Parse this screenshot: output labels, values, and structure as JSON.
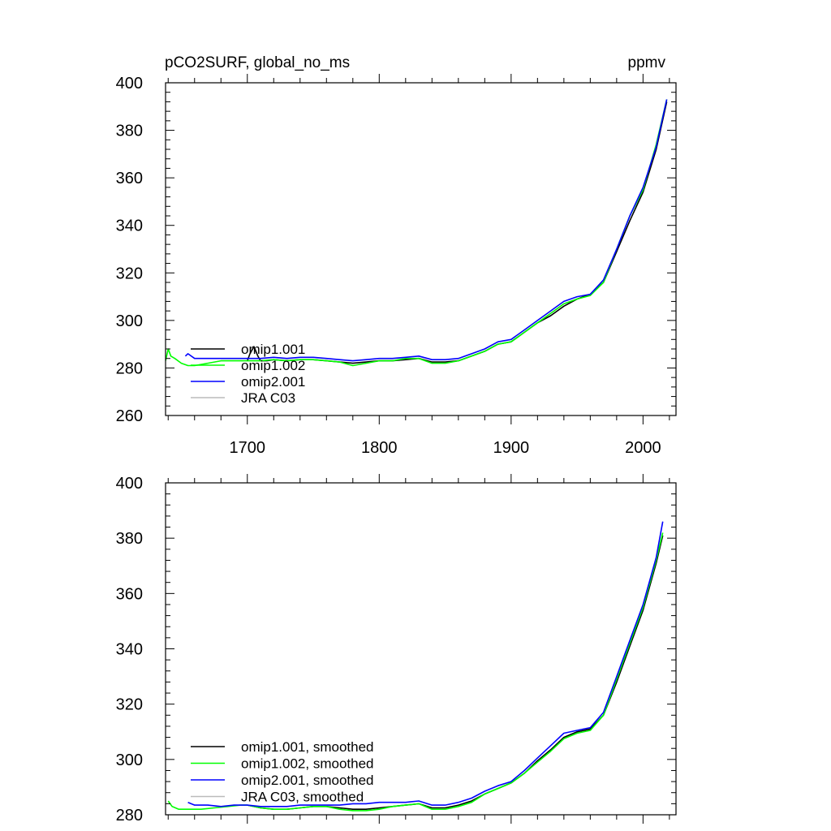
{
  "figure": {
    "background": "#ffffff"
  },
  "chart_data": [
    {
      "type": "line",
      "title": "pCO2SURF, global_no_ms",
      "units": "ppmv",
      "xlim": [
        1638,
        2025
      ],
      "ylim": [
        260,
        400
      ],
      "xticks": [
        1700,
        1800,
        1900,
        2000
      ],
      "xtick_labels": [
        "1700",
        "1800",
        "1900",
        "2000"
      ],
      "yticks": [
        260,
        280,
        300,
        320,
        340,
        360,
        380,
        400
      ],
      "ytick_labels": [
        "260",
        "280",
        "300",
        "320",
        "340",
        "360",
        "380",
        "400"
      ],
      "legend_position": "bottom-left",
      "series": [
        {
          "name": "omip1.001",
          "color": "#000000",
          "x": [
            1700,
            1702,
            1705,
            1708,
            1710,
            1715,
            1720,
            1730,
            1740,
            1750,
            1760,
            1770,
            1780,
            1790,
            1800,
            1810,
            1820,
            1830,
            1840,
            1850,
            1860,
            1870,
            1880,
            1890,
            1900,
            1910,
            1920,
            1930,
            1940,
            1950,
            1960,
            1970,
            1980,
            1990,
            2000,
            2010,
            2018
          ],
          "y": [
            283,
            286,
            289,
            285,
            283,
            283,
            283.5,
            283,
            283.5,
            283.5,
            283,
            282.5,
            282,
            282.5,
            283,
            283,
            283.5,
            284,
            282.5,
            282.5,
            283,
            285,
            287,
            290,
            291,
            295,
            299,
            302,
            306,
            309,
            311,
            316,
            329,
            342,
            354,
            372,
            392
          ]
        },
        {
          "name": "omip1.002",
          "color": "#00ff00",
          "x": [
            1638,
            1640,
            1642,
            1645,
            1650,
            1655,
            1660,
            1670,
            1680,
            1690,
            1700,
            1710,
            1720,
            1730,
            1740,
            1750,
            1760,
            1770,
            1780,
            1790,
            1800,
            1810,
            1820,
            1830,
            1840,
            1850,
            1860,
            1870,
            1880,
            1890,
            1900,
            1910,
            1920,
            1930,
            1940,
            1950,
            1960,
            1970,
            1980,
            1990,
            2000,
            2010,
            2018
          ],
          "y": [
            283,
            288,
            285,
            284,
            282,
            281,
            281,
            282,
            283,
            283,
            283,
            283,
            283.5,
            283,
            283.5,
            283.5,
            283,
            282.5,
            281,
            282,
            283,
            283,
            284,
            284,
            282,
            282,
            283,
            285,
            287,
            290,
            291,
            295,
            299,
            303,
            307,
            309,
            310.5,
            316,
            330,
            344,
            355,
            374,
            393
          ]
        },
        {
          "name": "omip2.001",
          "color": "#0000ff",
          "x": [
            1653,
            1655,
            1660,
            1670,
            1680,
            1690,
            1700,
            1710,
            1720,
            1730,
            1740,
            1750,
            1760,
            1770,
            1780,
            1790,
            1800,
            1810,
            1820,
            1830,
            1840,
            1850,
            1860,
            1870,
            1880,
            1890,
            1900,
            1910,
            1920,
            1930,
            1940,
            1950,
            1960,
            1970,
            1980,
            1990,
            2000,
            2010,
            2018
          ],
          "y": [
            285,
            286,
            284,
            284,
            284,
            284,
            284,
            284,
            284.5,
            284,
            284.5,
            284.5,
            284,
            283.5,
            283,
            283.5,
            284,
            284,
            284.5,
            285,
            283.5,
            283.5,
            284,
            286,
            288,
            291,
            292,
            296,
            300,
            304,
            308,
            310,
            311,
            317,
            330,
            344,
            356,
            373,
            393
          ]
        },
        {
          "name": "JRA C03",
          "color": "#bbbbbb",
          "x": [],
          "y": []
        }
      ]
    },
    {
      "type": "line",
      "title": "",
      "units": "",
      "xlim": [
        1638,
        2025
      ],
      "ylim": [
        280,
        400
      ],
      "xticks": [
        1700,
        1800,
        1900,
        2000
      ],
      "xtick_labels": [
        "1700",
        "1800",
        "1900",
        "2000"
      ],
      "yticks": [
        280,
        300,
        320,
        340,
        360,
        380,
        400
      ],
      "ytick_labels": [
        "280",
        "300",
        "320",
        "340",
        "360",
        "380",
        "400"
      ],
      "legend_position": "bottom-left",
      "series": [
        {
          "name": "omip1.001, smoothed",
          "color": "#000000",
          "x": [
            1700,
            1710,
            1720,
            1730,
            1740,
            1750,
            1760,
            1770,
            1780,
            1790,
            1800,
            1810,
            1820,
            1830,
            1840,
            1850,
            1860,
            1870,
            1880,
            1890,
            1900,
            1910,
            1920,
            1930,
            1940,
            1950,
            1960,
            1970,
            1980,
            1990,
            2000,
            2010,
            2015
          ],
          "y": [
            283.5,
            282.5,
            282,
            282,
            282.5,
            283,
            283,
            282.5,
            282,
            282,
            282.5,
            283,
            283.5,
            284,
            282.5,
            282.5,
            283.5,
            285,
            287.5,
            289.5,
            291.5,
            295,
            299.5,
            303.5,
            308,
            310,
            311,
            316,
            328,
            341,
            354,
            371,
            381
          ]
        },
        {
          "name": "omip1.002, smoothed",
          "color": "#00ff00",
          "x": [
            1640,
            1643,
            1648,
            1655,
            1665,
            1675,
            1685,
            1695,
            1700,
            1710,
            1720,
            1730,
            1740,
            1750,
            1760,
            1770,
            1780,
            1790,
            1800,
            1810,
            1820,
            1830,
            1840,
            1850,
            1860,
            1870,
            1880,
            1890,
            1900,
            1910,
            1920,
            1930,
            1940,
            1950,
            1960,
            1970,
            1980,
            1990,
            2000,
            2010,
            2015
          ],
          "y": [
            285,
            283,
            282,
            282,
            282,
            282.5,
            283,
            283.5,
            283.5,
            282.5,
            282,
            282,
            282.5,
            283,
            283,
            282,
            281.5,
            281.5,
            282,
            283,
            283.5,
            284,
            282,
            282,
            283,
            284.5,
            287.5,
            289.5,
            291.5,
            295,
            299,
            303,
            307.5,
            309.5,
            310.5,
            316,
            329,
            342,
            355,
            372,
            382
          ]
        },
        {
          "name": "omip2.001, smoothed",
          "color": "#0000ff",
          "x": [
            1655,
            1660,
            1670,
            1680,
            1690,
            1700,
            1710,
            1720,
            1730,
            1740,
            1750,
            1760,
            1770,
            1780,
            1790,
            1800,
            1810,
            1820,
            1830,
            1840,
            1850,
            1860,
            1870,
            1880,
            1890,
            1900,
            1910,
            1920,
            1930,
            1940,
            1950,
            1960,
            1970,
            1980,
            1990,
            2000,
            2010,
            2015
          ],
          "y": [
            284.5,
            283.5,
            283.5,
            283,
            283.5,
            283.5,
            283,
            283,
            283,
            283.5,
            283.5,
            283.5,
            283.5,
            284,
            284,
            284.5,
            284.5,
            284.5,
            285,
            283.5,
            283.5,
            284.5,
            286,
            288.5,
            290.5,
            292,
            296,
            300.5,
            305,
            309.5,
            310.5,
            311.5,
            317,
            330,
            343,
            356,
            373,
            386
          ]
        },
        {
          "name": "JRA C03, smoothed",
          "color": "#bbbbbb",
          "x": [],
          "y": []
        }
      ]
    }
  ]
}
